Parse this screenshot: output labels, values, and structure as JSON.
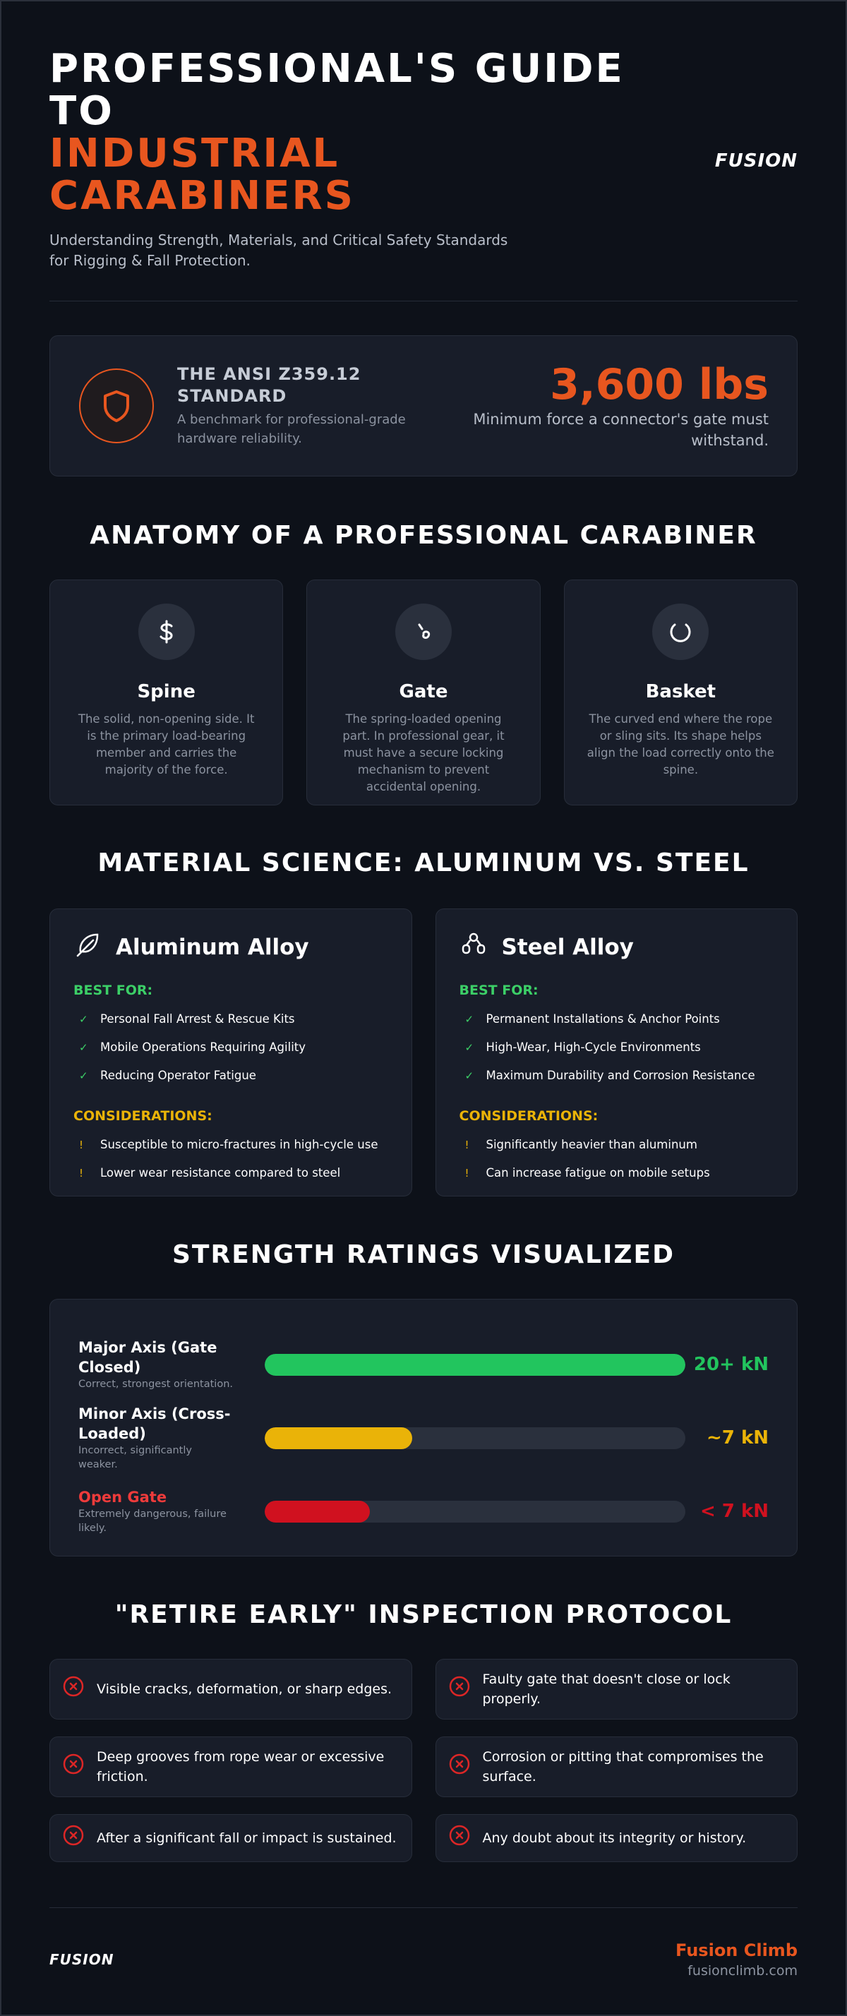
{
  "header": {
    "title": "PROFESSIONAL'S GUIDE TO",
    "title_highlight": "INDUSTRIAL CARABINERS",
    "subtitle": "Understanding Strength, Materials, and Critical Safety Standards for Rigging & Fall Protection.",
    "logo": "FUSION"
  },
  "standard": {
    "title": "THE ANSI Z359.12 STANDARD",
    "description": "A benchmark for professional-grade hardware reliability.",
    "stat": "3,600 lbs",
    "stat_caption": "Minimum force a connector's gate must withstand."
  },
  "anatomy": {
    "heading": "ANATOMY OF A PROFESSIONAL CARABINER",
    "parts": [
      {
        "name": "Spine",
        "description": "The solid, non-opening side. It is the primary load-bearing member and carries the majority of the force."
      },
      {
        "name": "Gate",
        "description": "The spring-loaded opening part. In professional gear, it must have a secure locking mechanism to prevent accidental opening."
      },
      {
        "name": "Basket",
        "description": "The curved end where the rope or sling sits. Its shape helps align the load correctly onto the spine."
      }
    ]
  },
  "materials": {
    "heading": "MATERIAL SCIENCE: ALUMINUM VS. STEEL",
    "cards": [
      {
        "name": "Aluminum Alloy",
        "best_for_label": "BEST FOR:",
        "best_for": [
          "Personal Fall Arrest & Rescue Kits",
          "Mobile Operations Requiring Agility",
          "Reducing Operator Fatigue"
        ],
        "considerations_label": "CONSIDERATIONS:",
        "considerations": [
          "Susceptible to micro-fractures in high-cycle use",
          "Lower wear resistance compared to steel"
        ]
      },
      {
        "name": "Steel Alloy",
        "best_for_label": "BEST FOR:",
        "best_for": [
          "Permanent Installations & Anchor Points",
          "High-Wear, High-Cycle Environments",
          "Maximum Durability and Corrosion Resistance"
        ],
        "considerations_label": "CONSIDERATIONS:",
        "considerations": [
          "Significantly heavier than aluminum",
          "Can increase fatigue on mobile setups"
        ]
      }
    ]
  },
  "strength": {
    "heading": "STRENGTH RATINGS VISUALIZED",
    "xlim": [
      0,
      20
    ],
    "ratings": [
      {
        "label": "Major Axis (Gate Closed)",
        "note": "Correct, strongest orientation.",
        "value": 20,
        "value_label": "20+ kN",
        "color": "#22c55e",
        "label_color": "#ffffff"
      },
      {
        "label": "Minor Axis (Cross-Loaded)",
        "note": "Incorrect, significantly weaker.",
        "value": 7,
        "value_label": "~7 kN",
        "color": "#eab308",
        "label_color": "#ffffff"
      },
      {
        "label": "Open Gate",
        "note": "Extremely dangerous, failure likely.",
        "value": 5,
        "value_label": "< 7 kN",
        "color": "#d0111f",
        "label_color": "#ef3b3b"
      }
    ]
  },
  "inspection": {
    "heading": "\"RETIRE EARLY\" INSPECTION PROTOCOL",
    "items": [
      "Visible cracks, deformation, or sharp edges.",
      "Faulty gate that doesn't close or lock properly.",
      "Deep grooves from rope wear or excessive friction.",
      "Corrosion or pitting that compromises the surface.",
      "After a significant fall or impact is sustained.",
      "Any doubt about its integrity or history."
    ]
  },
  "footer": {
    "logo": "FUSION",
    "brand": "Fusion Climb",
    "url": "fusionclimb.com"
  }
}
